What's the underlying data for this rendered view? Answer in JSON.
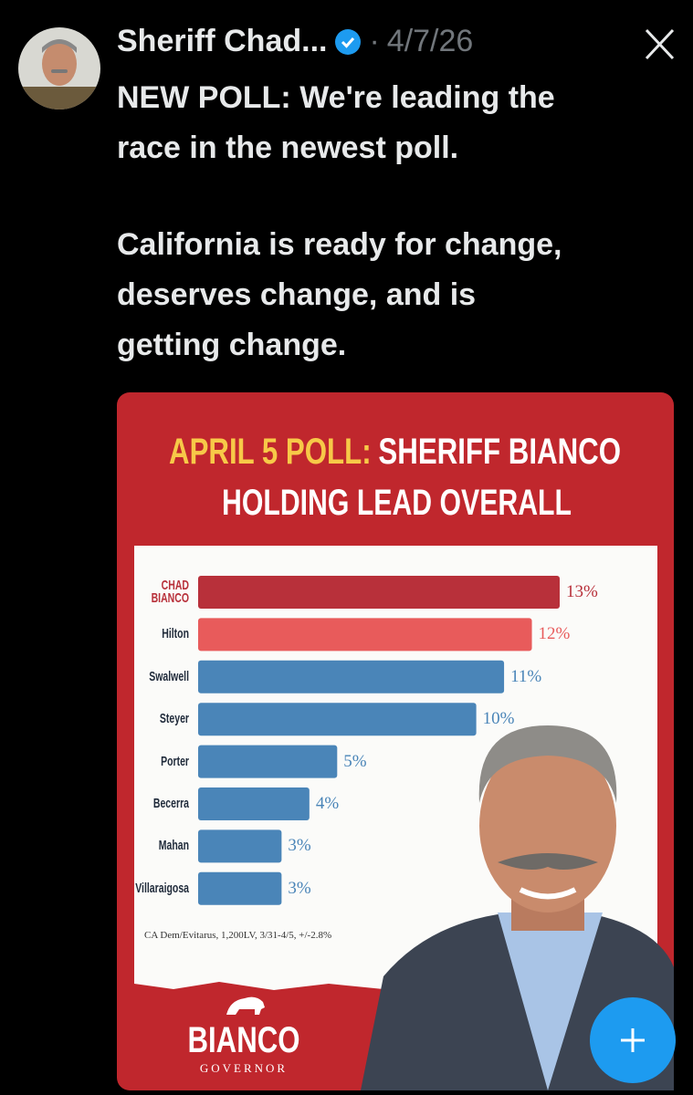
{
  "tweet": {
    "author": "Sheriff Chad...",
    "separator": "·",
    "date": "4/7/26",
    "paragraphs": [
      [
        "NEW POLL: We're leading the",
        "race in the newest poll."
      ],
      [
        "California is ready for change,",
        "deserves change, and is",
        "getting change."
      ]
    ]
  },
  "chart_data": {
    "type": "bar",
    "orientation": "horizontal",
    "title_lines": [
      [
        "APRIL 5 POLL:",
        "SHERIFF BIANCO"
      ],
      [
        "HOLDING LEAD OVERALL"
      ]
    ],
    "title_colors": [
      [
        "#f7c948",
        "#ffffff"
      ],
      [
        "#ffffff"
      ]
    ],
    "categories": [
      "CHAD BIANCO",
      "Hilton",
      "Swalwell",
      "Steyer",
      "Porter",
      "Becerra",
      "Mahan",
      "Villaraigosa"
    ],
    "values": [
      13,
      12,
      11,
      10,
      5,
      4,
      3,
      3
    ],
    "value_labels": [
      "13%",
      "12%",
      "11%",
      "10%",
      "5%",
      "4%",
      "3%",
      "3%"
    ],
    "colors": [
      "#b8303a",
      "#e85b5b",
      "#4a85b8",
      "#4a85b8",
      "#4a85b8",
      "#4a85b8",
      "#4a85b8",
      "#4a85b8"
    ],
    "label_colors": [
      "#b8303a",
      "#1f2a3a",
      "#1f2a3a",
      "#1f2a3a",
      "#1f2a3a",
      "#1f2a3a",
      "#1f2a3a",
      "#1f2a3a"
    ],
    "source": "CA Dem/Evitarus, 1,200LV, 3/31-4/5, +/-2.8%"
  },
  "logo": {
    "name": "BIANCO",
    "office": "GOVERNOR"
  }
}
